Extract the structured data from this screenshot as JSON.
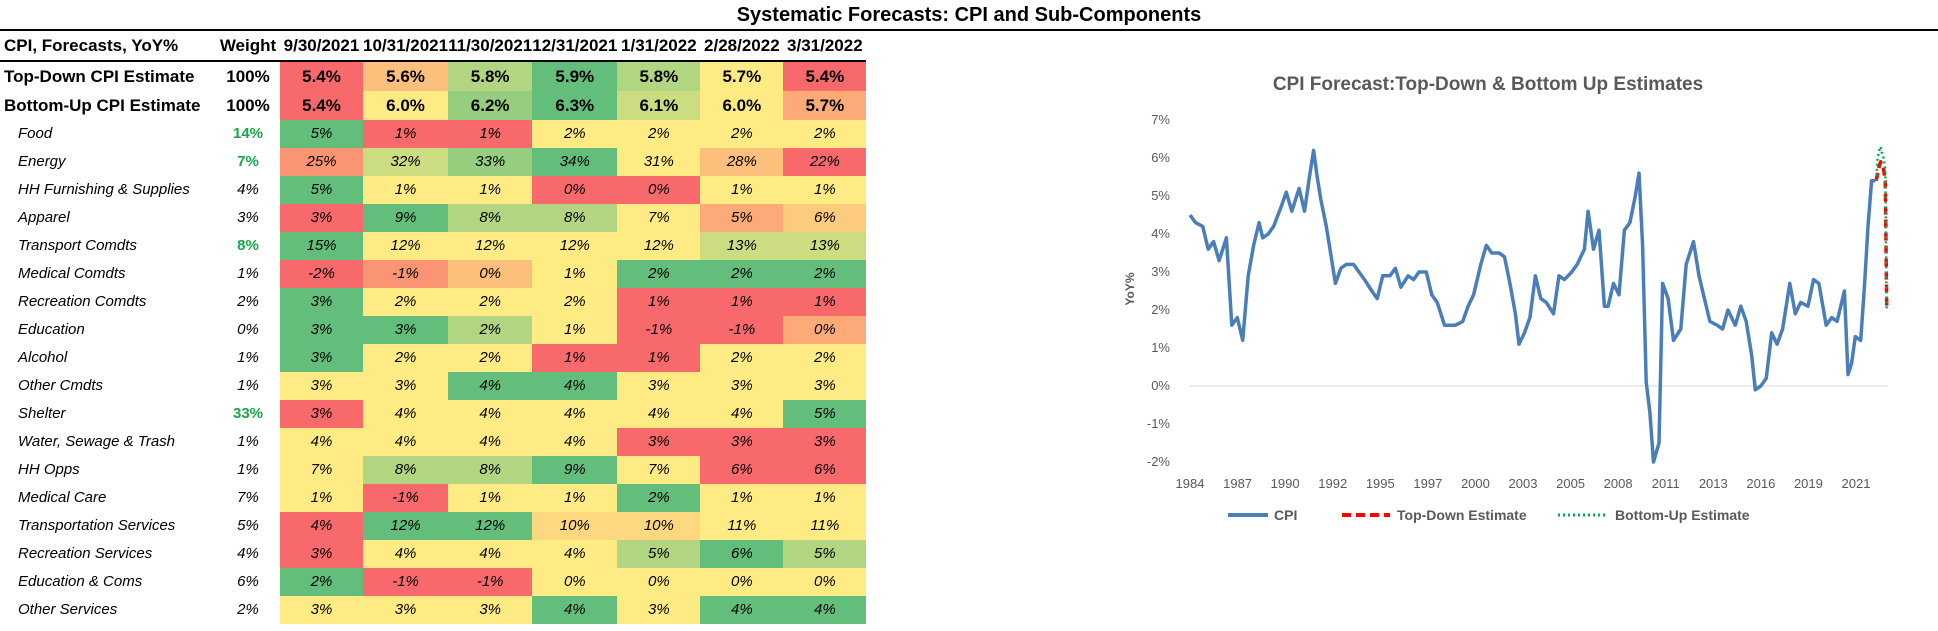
{
  "title": "Systematic Forecasts: CPI and Sub-Components",
  "table": {
    "label_header": "CPI, Forecasts, YoY%",
    "weight_header": "Weight",
    "dates": [
      "9/30/2021",
      "10/31/2021",
      "11/30/2021",
      "12/31/2021",
      "1/31/2022",
      "2/28/2022",
      "3/31/2022"
    ],
    "summary_rows": [
      {
        "label": "Top-Down CPI Estimate",
        "weight": "100%",
        "values": [
          "5.4%",
          "5.6%",
          "5.8%",
          "5.9%",
          "5.8%",
          "5.7%",
          "5.4%"
        ]
      },
      {
        "label": "Bottom-Up CPI Estimate",
        "weight": "100%",
        "values": [
          "5.4%",
          "6.0%",
          "6.2%",
          "6.3%",
          "6.1%",
          "6.0%",
          "5.7%"
        ]
      }
    ],
    "rows": [
      {
        "label": "Food",
        "weight": "14%",
        "highlight": true,
        "values": [
          "5%",
          "1%",
          "1%",
          "2%",
          "2%",
          "2%",
          "2%"
        ]
      },
      {
        "label": "Energy",
        "weight": "7%",
        "highlight": true,
        "values": [
          "25%",
          "32%",
          "33%",
          "34%",
          "31%",
          "28%",
          "22%"
        ]
      },
      {
        "label": "HH Furnishing & Supplies",
        "weight": "4%",
        "highlight": false,
        "values": [
          "5%",
          "1%",
          "1%",
          "0%",
          "0%",
          "1%",
          "1%"
        ]
      },
      {
        "label": "Apparel",
        "weight": "3%",
        "highlight": false,
        "values": [
          "3%",
          "9%",
          "8%",
          "8%",
          "7%",
          "5%",
          "6%"
        ]
      },
      {
        "label": "Transport Comdts",
        "weight": "8%",
        "highlight": true,
        "values": [
          "15%",
          "12%",
          "12%",
          "12%",
          "12%",
          "13%",
          "13%"
        ]
      },
      {
        "label": "Medical Comdts",
        "weight": "1%",
        "highlight": false,
        "values": [
          "-2%",
          "-1%",
          "0%",
          "1%",
          "2%",
          "2%",
          "2%"
        ]
      },
      {
        "label": "Recreation Comdts",
        "weight": "2%",
        "highlight": false,
        "values": [
          "3%",
          "2%",
          "2%",
          "2%",
          "1%",
          "1%",
          "1%"
        ]
      },
      {
        "label": "Education",
        "weight": "0%",
        "highlight": false,
        "values": [
          "3%",
          "3%",
          "2%",
          "1%",
          "-1%",
          "-1%",
          "0%"
        ]
      },
      {
        "label": "Alcohol",
        "weight": "1%",
        "highlight": false,
        "values": [
          "3%",
          "2%",
          "2%",
          "1%",
          "1%",
          "2%",
          "2%"
        ]
      },
      {
        "label": "Other Cmdts",
        "weight": "1%",
        "highlight": false,
        "values": [
          "3%",
          "3%",
          "4%",
          "4%",
          "3%",
          "3%",
          "3%"
        ]
      },
      {
        "label": "Shelter",
        "weight": "33%",
        "highlight": true,
        "values": [
          "3%",
          "4%",
          "4%",
          "4%",
          "4%",
          "4%",
          "5%"
        ]
      },
      {
        "label": "Water, Sewage & Trash",
        "weight": "1%",
        "highlight": false,
        "values": [
          "4%",
          "4%",
          "4%",
          "4%",
          "3%",
          "3%",
          "3%"
        ]
      },
      {
        "label": "HH Opps",
        "weight": "1%",
        "highlight": false,
        "values": [
          "7%",
          "8%",
          "8%",
          "9%",
          "7%",
          "6%",
          "6%"
        ]
      },
      {
        "label": "Medical Care",
        "weight": "7%",
        "highlight": false,
        "values": [
          "1%",
          "-1%",
          "1%",
          "1%",
          "2%",
          "1%",
          "1%"
        ]
      },
      {
        "label": "Transportation Services",
        "weight": "5%",
        "highlight": false,
        "values": [
          "4%",
          "12%",
          "12%",
          "10%",
          "10%",
          "11%",
          "11%"
        ]
      },
      {
        "label": "Recreation Services",
        "weight": "4%",
        "highlight": false,
        "values": [
          "3%",
          "4%",
          "4%",
          "4%",
          "5%",
          "6%",
          "5%"
        ]
      },
      {
        "label": "Education & Coms",
        "weight": "6%",
        "highlight": false,
        "values": [
          "2%",
          "-1%",
          "-1%",
          "0%",
          "0%",
          "0%",
          "0%"
        ]
      },
      {
        "label": "Other Services",
        "weight": "2%",
        "highlight": false,
        "values": [
          "3%",
          "3%",
          "3%",
          "4%",
          "3%",
          "4%",
          "4%"
        ]
      }
    ],
    "colors": {
      "green": "#63be7b",
      "yellow": "#ffeb84",
      "red": "#f8696b",
      "highlight_text": "#1aa64a"
    }
  },
  "chart_data": {
    "type": "line",
    "title": "CPI Forecast:Top-Down & Bottom Up Estimates",
    "ylabel": "YoY%",
    "xlabel": "",
    "ylim": [
      -2,
      7
    ],
    "xlim": [
      1984,
      2022.4
    ],
    "y_ticks": [
      7,
      6,
      5,
      4,
      3,
      2,
      1,
      0,
      -1,
      -2
    ],
    "y_tick_labels": [
      "7%",
      "6%",
      "5%",
      "4%",
      "3%",
      "2%",
      "1%",
      "0%",
      "-1%",
      "-2%"
    ],
    "x_tick_labels": [
      "1984",
      "1987",
      "1990",
      "1992",
      "1995",
      "1997",
      "2000",
      "2003",
      "2005",
      "2008",
      "2011",
      "2013",
      "2016",
      "2019",
      "2021"
    ],
    "legend_position": "bottom",
    "grid": false,
    "series": [
      {
        "name": "CPI",
        "color": "#4a7ebb",
        "style": "solid",
        "x": [
          1984.0,
          1984.3,
          1984.7,
          1985.0,
          1985.3,
          1985.6,
          1986.0,
          1986.3,
          1986.6,
          1986.9,
          1987.2,
          1987.5,
          1987.8,
          1988.0,
          1988.3,
          1988.6,
          1989.0,
          1989.3,
          1989.6,
          1990.0,
          1990.3,
          1990.6,
          1990.8,
          1991.0,
          1991.2,
          1991.5,
          1991.8,
          1992.0,
          1992.3,
          1992.6,
          1993.0,
          1993.3,
          1993.6,
          1994.0,
          1994.3,
          1994.6,
          1995.0,
          1995.3,
          1995.6,
          1996.0,
          1996.3,
          1996.6,
          1997.0,
          1997.3,
          1997.6,
          1998.0,
          1998.3,
          1998.6,
          1999.0,
          1999.3,
          1999.6,
          2000.0,
          2000.3,
          2000.6,
          2001.0,
          2001.3,
          2001.6,
          2001.9,
          2002.1,
          2002.4,
          2002.7,
          2003.0,
          2003.3,
          2003.6,
          2004.0,
          2004.3,
          2004.6,
          2005.0,
          2005.3,
          2005.7,
          2005.9,
          2006.2,
          2006.5,
          2006.8,
          2007.0,
          2007.3,
          2007.6,
          2007.9,
          2008.2,
          2008.5,
          2008.7,
          2008.9,
          2009.1,
          2009.3,
          2009.5,
          2009.8,
          2010.0,
          2010.3,
          2010.6,
          2011.0,
          2011.3,
          2011.7,
          2012.0,
          2012.3,
          2012.6,
          2013.0,
          2013.3,
          2013.6,
          2014.0,
          2014.3,
          2014.6,
          2014.9,
          2015.1,
          2015.4,
          2015.7,
          2016.0,
          2016.3,
          2016.6,
          2017.0,
          2017.3,
          2017.6,
          2018.0,
          2018.3,
          2018.6,
          2019.0,
          2019.3,
          2019.6,
          2020.0,
          2020.2,
          2020.4,
          2020.6,
          2020.9,
          2021.1,
          2021.3,
          2021.5,
          2021.7
        ],
        "y": [
          4.5,
          4.3,
          4.2,
          3.6,
          3.8,
          3.3,
          3.9,
          1.6,
          1.8,
          1.2,
          2.9,
          3.7,
          4.3,
          3.9,
          4.0,
          4.2,
          4.7,
          5.1,
          4.6,
          5.2,
          4.6,
          5.6,
          6.2,
          5.5,
          4.9,
          4.2,
          3.3,
          2.7,
          3.1,
          3.2,
          3.2,
          3.0,
          2.8,
          2.5,
          2.3,
          2.9,
          2.9,
          3.1,
          2.6,
          2.9,
          2.8,
          3.0,
          3.0,
          2.4,
          2.2,
          1.6,
          1.6,
          1.6,
          1.7,
          2.1,
          2.4,
          3.2,
          3.7,
          3.5,
          3.5,
          3.4,
          2.7,
          1.9,
          1.1,
          1.4,
          1.8,
          2.9,
          2.3,
          2.2,
          1.9,
          2.9,
          2.8,
          3.0,
          3.2,
          3.6,
          4.6,
          3.6,
          4.1,
          2.1,
          2.1,
          2.7,
          2.4,
          4.1,
          4.3,
          5.0,
          5.6,
          3.7,
          0.1,
          -0.7,
          -2.0,
          -1.5,
          2.7,
          2.3,
          1.2,
          1.5,
          3.2,
          3.8,
          2.9,
          2.3,
          1.7,
          1.6,
          1.5,
          2.0,
          1.6,
          2.1,
          1.7,
          0.8,
          -0.1,
          0.0,
          0.2,
          1.4,
          1.1,
          1.5,
          2.7,
          1.9,
          2.2,
          2.1,
          2.8,
          2.7,
          1.6,
          1.8,
          1.7,
          2.5,
          0.3,
          0.6,
          1.3,
          1.2,
          2.6,
          4.2,
          5.4,
          5.4
        ]
      },
      {
        "name": "Top-Down Estimate",
        "color": "#ff0000",
        "style": "dashed",
        "x": [
          2021.75,
          2021.83,
          2021.92,
          2022.0,
          2022.08,
          2022.16,
          2022.25,
          2022.33
        ],
        "y": [
          5.4,
          5.6,
          5.8,
          5.9,
          5.8,
          5.7,
          5.4,
          2.1
        ]
      },
      {
        "name": "Bottom-Up Estimate",
        "color": "#00b050",
        "style": "dotted",
        "x": [
          2021.75,
          2021.83,
          2021.92,
          2022.0,
          2022.08,
          2022.16,
          2022.25,
          2022.33
        ],
        "y": [
          5.4,
          6.0,
          6.2,
          6.3,
          6.1,
          6.0,
          5.7,
          2.0
        ]
      }
    ]
  }
}
